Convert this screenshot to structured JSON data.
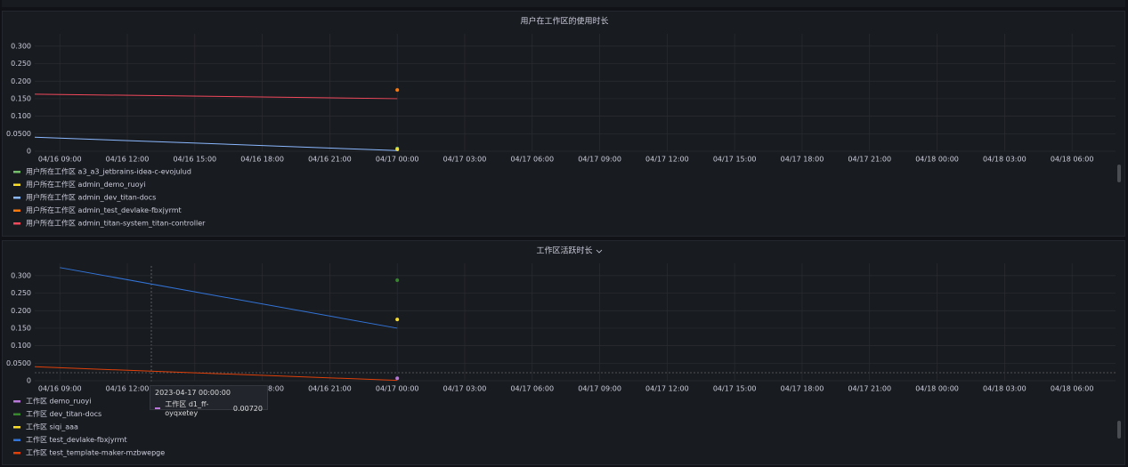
{
  "chart_data": [
    {
      "type": "line",
      "title": "用户在工作区的使用时长",
      "x": [
        "04/16 07:53",
        "04/17 00:00"
      ],
      "xlim": [
        "04/16 07:53",
        "04/18 07:56"
      ],
      "xticks": [
        "04/16 09:00",
        "04/16 12:00",
        "04/16 15:00",
        "04/16 18:00",
        "04/16 21:00",
        "04/17 00:00",
        "04/17 03:00",
        "04/17 06:00",
        "04/17 09:00",
        "04/17 12:00",
        "04/17 15:00",
        "04/17 18:00",
        "04/17 21:00",
        "04/18 00:00",
        "04/18 03:00",
        "04/18 06:00"
      ],
      "ylim": [
        0,
        0.32
      ],
      "yticks": [
        0,
        {
          "value": 0.05,
          "label": "0.0500"
        },
        {
          "value": 0.1,
          "label": "0.100"
        },
        {
          "value": 0.15,
          "label": "0.150"
        },
        {
          "value": 0.2,
          "label": "0.200"
        },
        {
          "value": 0.25,
          "label": "0.250"
        },
        {
          "value": 0.3,
          "label": "0.300"
        }
      ],
      "grid": true,
      "series": [
        {
          "name": "用户所在工作区 a3_a3_jetbrains-idea-c-evojulud",
          "color": "#73bf69",
          "values": [
            null,
            0.008
          ]
        },
        {
          "name": "用户所在工作区 admin_demo_ruoyi",
          "color": "#fade2a",
          "values": [
            null,
            0.005
          ]
        },
        {
          "name": "用户所在工作区 admin_dev_titan-docs",
          "color": "#8ab8ff",
          "values": [
            0.04,
            0.002
          ]
        },
        {
          "name": "用户所在工作区 admin_test_devlake-fbxjyrmt",
          "color": "#ff780a",
          "values": [
            null,
            0.175
          ]
        },
        {
          "name": "用户所在工作区 admin_titan-system_titan-controller",
          "color": "#f2495c",
          "values": [
            0.163,
            0.15
          ]
        }
      ]
    },
    {
      "type": "line",
      "title": "工作区活跃时长",
      "x": [
        "04/16 07:53",
        "04/16 09:00",
        "04/17 00:00"
      ],
      "xlim": [
        "04/16 07:53",
        "04/18 07:56"
      ],
      "xticks": [
        "04/16 09:00",
        "04/16 12:00",
        "04/16 15:00",
        "04/16 18:00",
        "04/16 21:00",
        "04/17 00:00",
        "04/17 03:00",
        "04/17 06:00",
        "04/17 09:00",
        "04/17 12:00",
        "04/17 15:00",
        "04/17 18:00",
        "04/17 21:00",
        "04/18 00:00",
        "04/18 03:00",
        "04/18 06:00"
      ],
      "ylim": [
        0,
        0.32
      ],
      "yticks": [
        0,
        {
          "value": 0.05,
          "label": "0.0500"
        },
        {
          "value": 0.1,
          "label": "0.100"
        },
        {
          "value": 0.15,
          "label": "0.150"
        },
        {
          "value": 0.2,
          "label": "0.200"
        },
        {
          "value": 0.25,
          "label": "0.250"
        },
        {
          "value": 0.3,
          "label": "0.300"
        }
      ],
      "grid": true,
      "series": [
        {
          "name": "工作区 demo_ruoyi",
          "color": "#b877d9",
          "values": [
            null,
            null,
            0.007
          ]
        },
        {
          "name": "工作区 dev_titan-docs",
          "color": "#37872d",
          "values": [
            null,
            null,
            0.287
          ]
        },
        {
          "name": "工作区 siqi_aaa",
          "color": "#fade2a",
          "values": [
            null,
            null,
            0.175
          ]
        },
        {
          "name": "工作区 test_devlake-fbxjyrmt",
          "color": "#3274d9",
          "values": [
            null,
            0.323,
            0.15
          ]
        },
        {
          "name": "工作区 test_template-maker-mzbwepge",
          "color": "#e0400a",
          "values": [
            0.04,
            0.037,
            0.001
          ]
        }
      ],
      "tooltip": {
        "time": "2023-04-17 00:00:00",
        "series": "工作区 d1_ff-oyqxetey",
        "value": "0.00720"
      }
    }
  ]
}
